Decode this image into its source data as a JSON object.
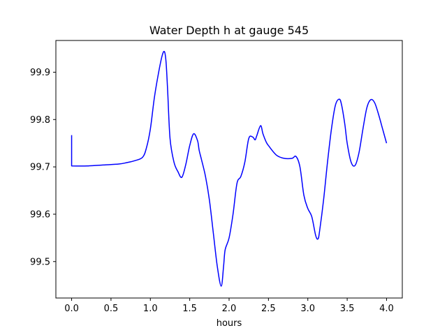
{
  "chart_data": {
    "type": "line",
    "title": "Water Depth h at gauge 545",
    "xlabel": "hours",
    "ylabel": "",
    "xlim": [
      -0.2,
      4.2
    ],
    "ylim": [
      99.423,
      99.967
    ],
    "grid": false,
    "x_ticks": [
      0.0,
      0.5,
      1.0,
      1.5,
      2.0,
      2.5,
      3.0,
      3.5,
      4.0
    ],
    "x_tick_labels": [
      "0.0",
      "0.5",
      "1.0",
      "1.5",
      "2.0",
      "2.5",
      "3.0",
      "3.5",
      "4.0"
    ],
    "y_ticks": [
      99.5,
      99.6,
      99.7,
      99.8,
      99.9
    ],
    "y_tick_labels": [
      "99.5",
      "99.6",
      "99.7",
      "99.8",
      "99.9"
    ],
    "series": [
      {
        "color": "#0000ff",
        "x": [
          0.0,
          0.0,
          0.2,
          0.4,
          0.6,
          0.7,
          0.8,
          0.9,
          0.95,
          1.0,
          1.05,
          1.1,
          1.15,
          1.18,
          1.2,
          1.22,
          1.25,
          1.3,
          1.35,
          1.4,
          1.45,
          1.5,
          1.55,
          1.6,
          1.62,
          1.65,
          1.7,
          1.75,
          1.8,
          1.85,
          1.9,
          1.93,
          1.95,
          2.0,
          2.05,
          2.1,
          2.15,
          2.2,
          2.25,
          2.3,
          2.33,
          2.35,
          2.4,
          2.43,
          2.47,
          2.5,
          2.6,
          2.7,
          2.8,
          2.85,
          2.9,
          2.95,
          3.0,
          3.05,
          3.1,
          3.13,
          3.15,
          3.2,
          3.25,
          3.3,
          3.35,
          3.4,
          3.43,
          3.47,
          3.5,
          3.55,
          3.6,
          3.65,
          3.7,
          3.75,
          3.8,
          3.85,
          3.9,
          3.95,
          4.0
        ],
        "y": [
          99.767,
          99.702,
          99.702,
          99.704,
          99.706,
          99.709,
          99.713,
          99.72,
          99.74,
          99.78,
          99.845,
          99.895,
          99.935,
          99.943,
          99.92,
          99.86,
          99.76,
          99.71,
          99.69,
          99.678,
          99.705,
          99.745,
          99.77,
          99.755,
          99.735,
          99.715,
          99.68,
          99.63,
          99.56,
          99.49,
          99.448,
          99.49,
          99.525,
          99.55,
          99.6,
          99.665,
          99.68,
          99.71,
          99.76,
          99.763,
          99.757,
          99.765,
          99.787,
          99.77,
          99.753,
          99.745,
          99.725,
          99.718,
          99.718,
          99.722,
          99.7,
          99.64,
          99.612,
          99.595,
          99.555,
          99.548,
          99.565,
          99.63,
          99.71,
          99.78,
          99.83,
          99.843,
          99.83,
          99.79,
          99.75,
          99.71,
          99.703,
          99.73,
          99.78,
          99.825,
          99.842,
          99.835,
          99.81,
          99.78,
          99.75
        ]
      }
    ]
  }
}
